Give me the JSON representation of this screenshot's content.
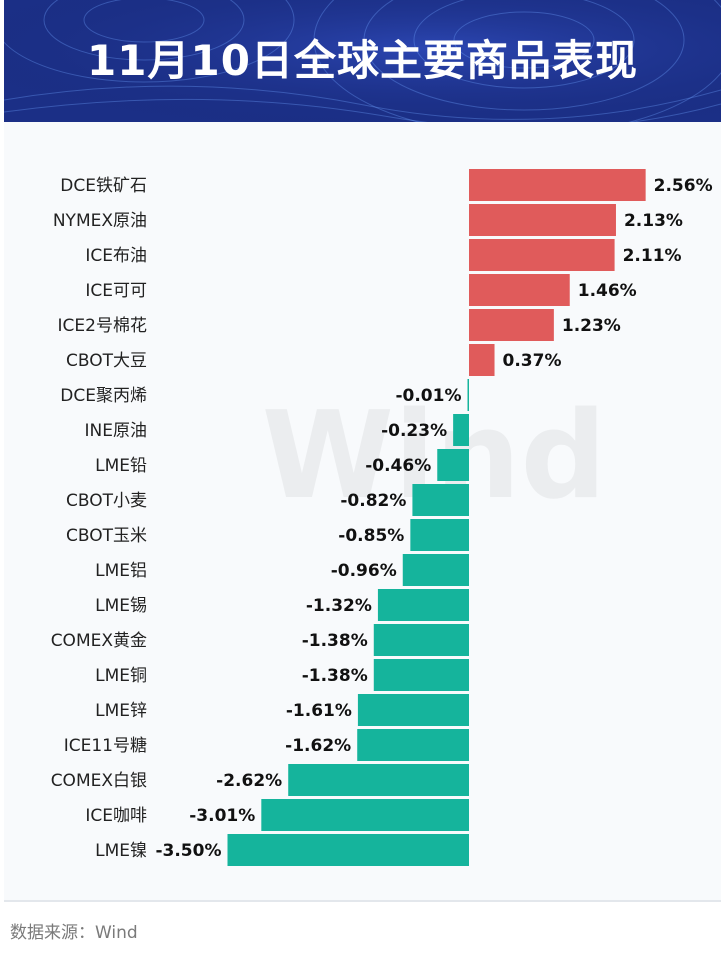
{
  "header": {
    "title": "11月10日全球主要商品表现"
  },
  "footer": {
    "source": "数据来源：Wind"
  },
  "watermark": "Wind",
  "colors": {
    "positive": "#e05b5b",
    "negative": "#15b49c",
    "header_bg": "#1b2f86"
  },
  "chart_data": {
    "type": "bar",
    "orientation": "horizontal",
    "title": "11月10日全球主要商品表现",
    "unit": "%",
    "categories": [
      "DCE铁矿石",
      "NYMEX原油",
      "ICE布油",
      "ICE可可",
      "ICE2号棉花",
      "CBOT大豆",
      "DCE聚丙烯",
      "INE原油",
      "LME铅",
      "CBOT小麦",
      "CBOT玉米",
      "LME铝",
      "LME锡",
      "COMEX黄金",
      "LME铜",
      "LME锌",
      "ICE11号糖",
      "COMEX白银",
      "ICE咖啡",
      "LME镍"
    ],
    "values": [
      2.56,
      2.13,
      2.11,
      1.46,
      1.23,
      0.37,
      -0.01,
      -0.23,
      -0.46,
      -0.82,
      -0.85,
      -0.96,
      -1.32,
      -1.38,
      -1.38,
      -1.61,
      -1.62,
      -2.62,
      -3.01,
      -3.5
    ],
    "labels": [
      "2.56%",
      "2.13%",
      "2.11%",
      "1.46%",
      "1.23%",
      "0.37%",
      "-0.01%",
      "-0.23%",
      "-0.46%",
      "-0.82%",
      "-0.85%",
      "-0.96%",
      "-1.32%",
      "-1.38%",
      "-1.38%",
      "-1.61%",
      "-1.62%",
      "-2.62%",
      "-3.01%",
      "-3.50%"
    ],
    "xlabel": "",
    "ylabel": "",
    "xlim": [
      -3.5,
      2.56
    ],
    "grid": false
  }
}
